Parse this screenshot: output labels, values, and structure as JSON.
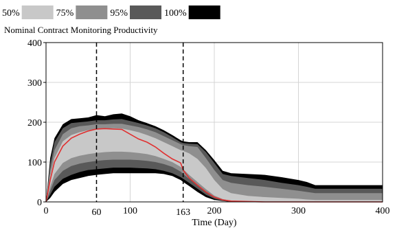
{
  "chart_data": {
    "type": "area",
    "title": "Nominal Contract Monitoring Productivity",
    "xlabel": "Time (Day)",
    "ylabel": "",
    "xlim": [
      0,
      400
    ],
    "ylim": [
      0,
      400
    ],
    "x_ticks": [
      0,
      100,
      200,
      300,
      400
    ],
    "y_ticks": [
      0,
      100,
      200,
      300,
      400
    ],
    "marked_x": [
      60,
      163
    ],
    "grid": true,
    "legend_position": "top-left",
    "legend": [
      {
        "label": "50%",
        "color": "#c8c8c8"
      },
      {
        "label": "75%",
        "color": "#8f8f8f"
      },
      {
        "label": "95%",
        "color": "#595959"
      },
      {
        "label": "100%",
        "color": "#000000"
      }
    ],
    "x": [
      0,
      5,
      10,
      20,
      30,
      40,
      50,
      60,
      70,
      80,
      90,
      100,
      110,
      120,
      130,
      140,
      150,
      160,
      163,
      170,
      180,
      190,
      200,
      210,
      220,
      240,
      260,
      280,
      300,
      310,
      320,
      340,
      360,
      380,
      400
    ],
    "bands": [
      {
        "name": "100%",
        "upper": [
          0,
          110,
          160,
          195,
          208,
          210,
          212,
          218,
          215,
          220,
          222,
          215,
          205,
          198,
          190,
          180,
          168,
          155,
          152,
          150,
          150,
          130,
          105,
          78,
          72,
          70,
          68,
          62,
          55,
          50,
          42,
          42,
          42,
          42,
          42
        ],
        "lower": [
          0,
          10,
          25,
          45,
          55,
          60,
          65,
          68,
          70,
          72,
          72,
          72,
          72,
          72,
          72,
          70,
          65,
          55,
          50,
          40,
          25,
          12,
          5,
          2,
          0,
          0,
          0,
          0,
          0,
          0,
          0,
          0,
          0,
          0,
          0
        ]
      },
      {
        "name": "95%",
        "upper": [
          0,
          95,
          150,
          185,
          198,
          200,
          202,
          205,
          205,
          207,
          208,
          203,
          198,
          192,
          185,
          175,
          163,
          150,
          148,
          146,
          145,
          125,
          98,
          70,
          65,
          60,
          55,
          48,
          42,
          38,
          33,
          33,
          33,
          33,
          33
        ],
        "lower": [
          0,
          18,
          38,
          58,
          68,
          75,
          80,
          82,
          84,
          86,
          86,
          86,
          85,
          84,
          82,
          78,
          72,
          62,
          58,
          48,
          33,
          18,
          8,
          3,
          0,
          0,
          0,
          0,
          0,
          0,
          0,
          0,
          0,
          0,
          0
        ]
      },
      {
        "name": "75%",
        "upper": [
          0,
          80,
          130,
          170,
          185,
          190,
          192,
          195,
          195,
          196,
          196,
          192,
          188,
          182,
          175,
          165,
          155,
          145,
          143,
          140,
          138,
          110,
          80,
          55,
          48,
          42,
          38,
          33,
          28,
          25,
          22,
          22,
          22,
          22,
          22
        ],
        "lower": [
          0,
          28,
          55,
          78,
          90,
          96,
          100,
          103,
          105,
          106,
          106,
          106,
          105,
          103,
          100,
          95,
          88,
          76,
          70,
          58,
          42,
          25,
          12,
          5,
          2,
          0,
          0,
          0,
          0,
          0,
          0,
          0,
          0,
          0,
          0
        ]
      },
      {
        "name": "50%",
        "upper": [
          0,
          65,
          110,
          152,
          168,
          175,
          180,
          183,
          184,
          185,
          184,
          180,
          175,
          168,
          160,
          150,
          140,
          130,
          128,
          122,
          108,
          85,
          55,
          32,
          22,
          15,
          12,
          10,
          8,
          6,
          5,
          5,
          5,
          5,
          5
        ],
        "lower": [
          0,
          38,
          70,
          98,
          110,
          116,
          120,
          123,
          125,
          126,
          126,
          125,
          123,
          120,
          115,
          108,
          100,
          88,
          82,
          68,
          50,
          32,
          16,
          7,
          3,
          0,
          0,
          0,
          0,
          0,
          0,
          0,
          0,
          0,
          0
        ]
      }
    ],
    "median": {
      "name": "median",
      "color": "#e03030",
      "values": [
        0,
        55,
        100,
        140,
        160,
        170,
        178,
        183,
        184,
        183,
        182,
        170,
        158,
        150,
        138,
        122,
        108,
        98,
        80,
        60,
        42,
        25,
        12,
        5,
        2,
        1,
        0,
        0,
        0,
        0,
        0,
        0,
        0,
        0,
        0
      ]
    }
  }
}
